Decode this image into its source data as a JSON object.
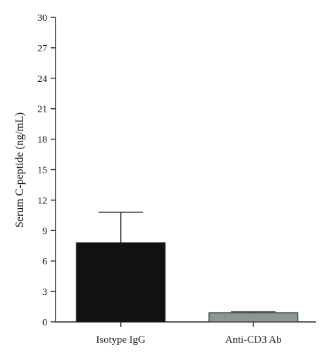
{
  "chart_data": {
    "type": "bar",
    "title": "",
    "xlabel": "",
    "ylabel": "Serum C-peptide (ng/mL)",
    "categories": [
      "Isotype IgG",
      "Anti-CD3 Ab"
    ],
    "values": [
      7.8,
      0.9
    ],
    "error_upper": [
      10.8,
      1.0
    ],
    "ylim": [
      0,
      30
    ],
    "yticks": [
      0,
      3,
      6,
      9,
      12,
      15,
      18,
      21,
      24,
      27,
      30
    ],
    "bar_colors": [
      "#111111",
      "#8c9696"
    ],
    "grid": false,
    "legend": "none"
  }
}
